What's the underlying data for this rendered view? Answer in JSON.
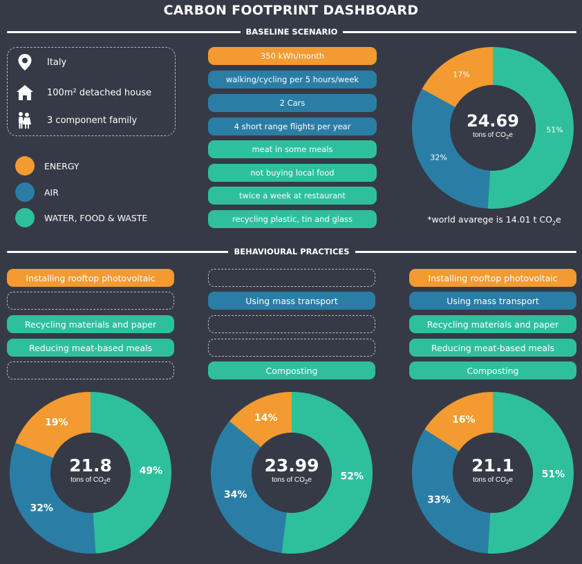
{
  "header": {
    "title": "CARBON FOOTPRINT DASHBOARD"
  },
  "sections": {
    "baseline": "BASELINE SCENARIO",
    "behavioural": "BEHAVIOURAL PRACTICES"
  },
  "profile": {
    "location": "Italy",
    "house": "100m² detached house",
    "family": "3 component family"
  },
  "legend": [
    {
      "label": "ENERGY",
      "color": "#f39a31"
    },
    {
      "label": "AIR",
      "color": "#2a7ea6"
    },
    {
      "label": "WATER, FOOD & WASTE",
      "color": "#2ec09c"
    }
  ],
  "baseline_items": [
    {
      "label": "350 kWh/month",
      "category": "energy"
    },
    {
      "label": "walking/cycling per 5 hours/week",
      "category": "air"
    },
    {
      "label": "2 Cars",
      "category": "air"
    },
    {
      "label": "4 short range flights per year",
      "category": "air"
    },
    {
      "label": "meat in some meals",
      "category": "wfw"
    },
    {
      "label": "not buying local food",
      "category": "wfw"
    },
    {
      "label": "twice a week at restaurant",
      "category": "wfw"
    },
    {
      "label": "recycling plastic, tin and glass",
      "category": "wfw"
    }
  ],
  "footnote": {
    "prefix": "*world avarege is 14.01 t CO",
    "sub": "2",
    "suffix": "e"
  },
  "unit": {
    "prefix": "tons of CO",
    "sub": "2",
    "suffix": "e"
  },
  "practices": [
    {
      "items": [
        {
          "label": "Installing rooftop photovoltaic",
          "category": "energy"
        },
        {
          "label": "",
          "category": "empty"
        },
        {
          "label": "Recycling materials and paper",
          "category": "wfw"
        },
        {
          "label": "Reducing meat-based meals",
          "category": "wfw"
        },
        {
          "label": "",
          "category": "empty"
        }
      ]
    },
    {
      "items": [
        {
          "label": "",
          "category": "empty"
        },
        {
          "label": "Using mass transport",
          "category": "air"
        },
        {
          "label": "",
          "category": "empty"
        },
        {
          "label": "",
          "category": "empty"
        },
        {
          "label": "Composting",
          "category": "wfw"
        }
      ]
    },
    {
      "items": [
        {
          "label": "Installing rooftop photovoltaic",
          "category": "energy"
        },
        {
          "label": "Using mass transport",
          "category": "air"
        },
        {
          "label": "Recycling materials and paper",
          "category": "wfw"
        },
        {
          "label": "Reducing meat-based meals",
          "category": "wfw"
        },
        {
          "label": "Composting",
          "category": "wfw"
        }
      ]
    }
  ],
  "chart_data": [
    {
      "type": "pie",
      "total": "24.69",
      "categories": [
        "ENERGY",
        "AIR",
        "WATER, FOOD & WASTE"
      ],
      "values": [
        17,
        32,
        51
      ],
      "colors": [
        "#f39a31",
        "#2a7ea6",
        "#2ec09c"
      ]
    },
    {
      "type": "pie",
      "total": "21.8",
      "categories": [
        "ENERGY",
        "AIR",
        "WATER, FOOD & WASTE"
      ],
      "values": [
        19,
        32,
        49
      ],
      "colors": [
        "#f39a31",
        "#2a7ea6",
        "#2ec09c"
      ]
    },
    {
      "type": "pie",
      "total": "23.99",
      "categories": [
        "ENERGY",
        "AIR",
        "WATER, FOOD & WASTE"
      ],
      "values": [
        14,
        34,
        52
      ],
      "colors": [
        "#f39a31",
        "#2a7ea6",
        "#2ec09c"
      ]
    },
    {
      "type": "pie",
      "total": "21.1",
      "categories": [
        "ENERGY",
        "AIR",
        "WATER, FOOD & WASTE"
      ],
      "values": [
        16,
        33,
        51
      ],
      "colors": [
        "#f39a31",
        "#2a7ea6",
        "#2ec09c"
      ]
    }
  ]
}
